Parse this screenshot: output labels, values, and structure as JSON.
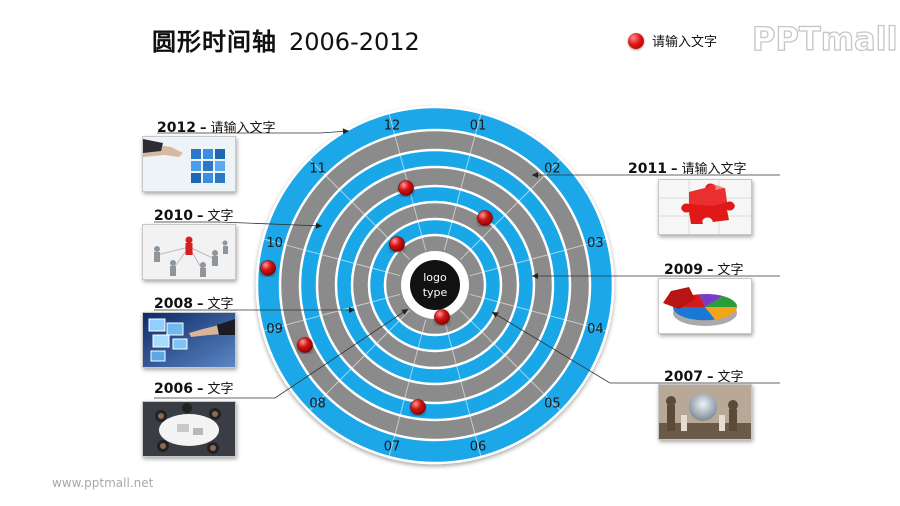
{
  "header": {
    "title": "圆形时间轴",
    "years": "2006-2012"
  },
  "legend": {
    "text": "请输入文字",
    "color": "#e01515"
  },
  "brand": "PPTmall",
  "footer_url": "www.pptmall.net",
  "center_logo": {
    "line1": "logo",
    "line2": "type"
  },
  "months": [
    "01",
    "02",
    "03",
    "04",
    "05",
    "06",
    "07",
    "08",
    "09",
    "10",
    "11",
    "12"
  ],
  "colors": {
    "ring_blue": "#1aa7e8",
    "ring_gray": "#8b8b8b",
    "ring_border": "#ffffff",
    "center": "#111111",
    "dot": "#d41414"
  },
  "entries": [
    {
      "id": "2012",
      "year": "2012",
      "dash": "–",
      "text": "请输入文字",
      "image": "hand-touching-cubes"
    },
    {
      "id": "2011",
      "year": "2011",
      "dash": "–",
      "text": "请输入文字",
      "image": "red-puzzle-piece"
    },
    {
      "id": "2010",
      "year": "2010",
      "dash": "–",
      "text": "文字",
      "image": "people-network"
    },
    {
      "id": "2009",
      "year": "2009",
      "dash": "–",
      "text": "文字",
      "image": "3d-pie-chart"
    },
    {
      "id": "2008",
      "year": "2008",
      "dash": "–",
      "text": "文字",
      "image": "hand-with-photos"
    },
    {
      "id": "2007",
      "year": "2007",
      "dash": "–",
      "text": "文字",
      "image": "chess-globe"
    },
    {
      "id": "2006",
      "year": "2006",
      "dash": "–",
      "text": "文字",
      "image": "team-meeting-top-view"
    }
  ]
}
